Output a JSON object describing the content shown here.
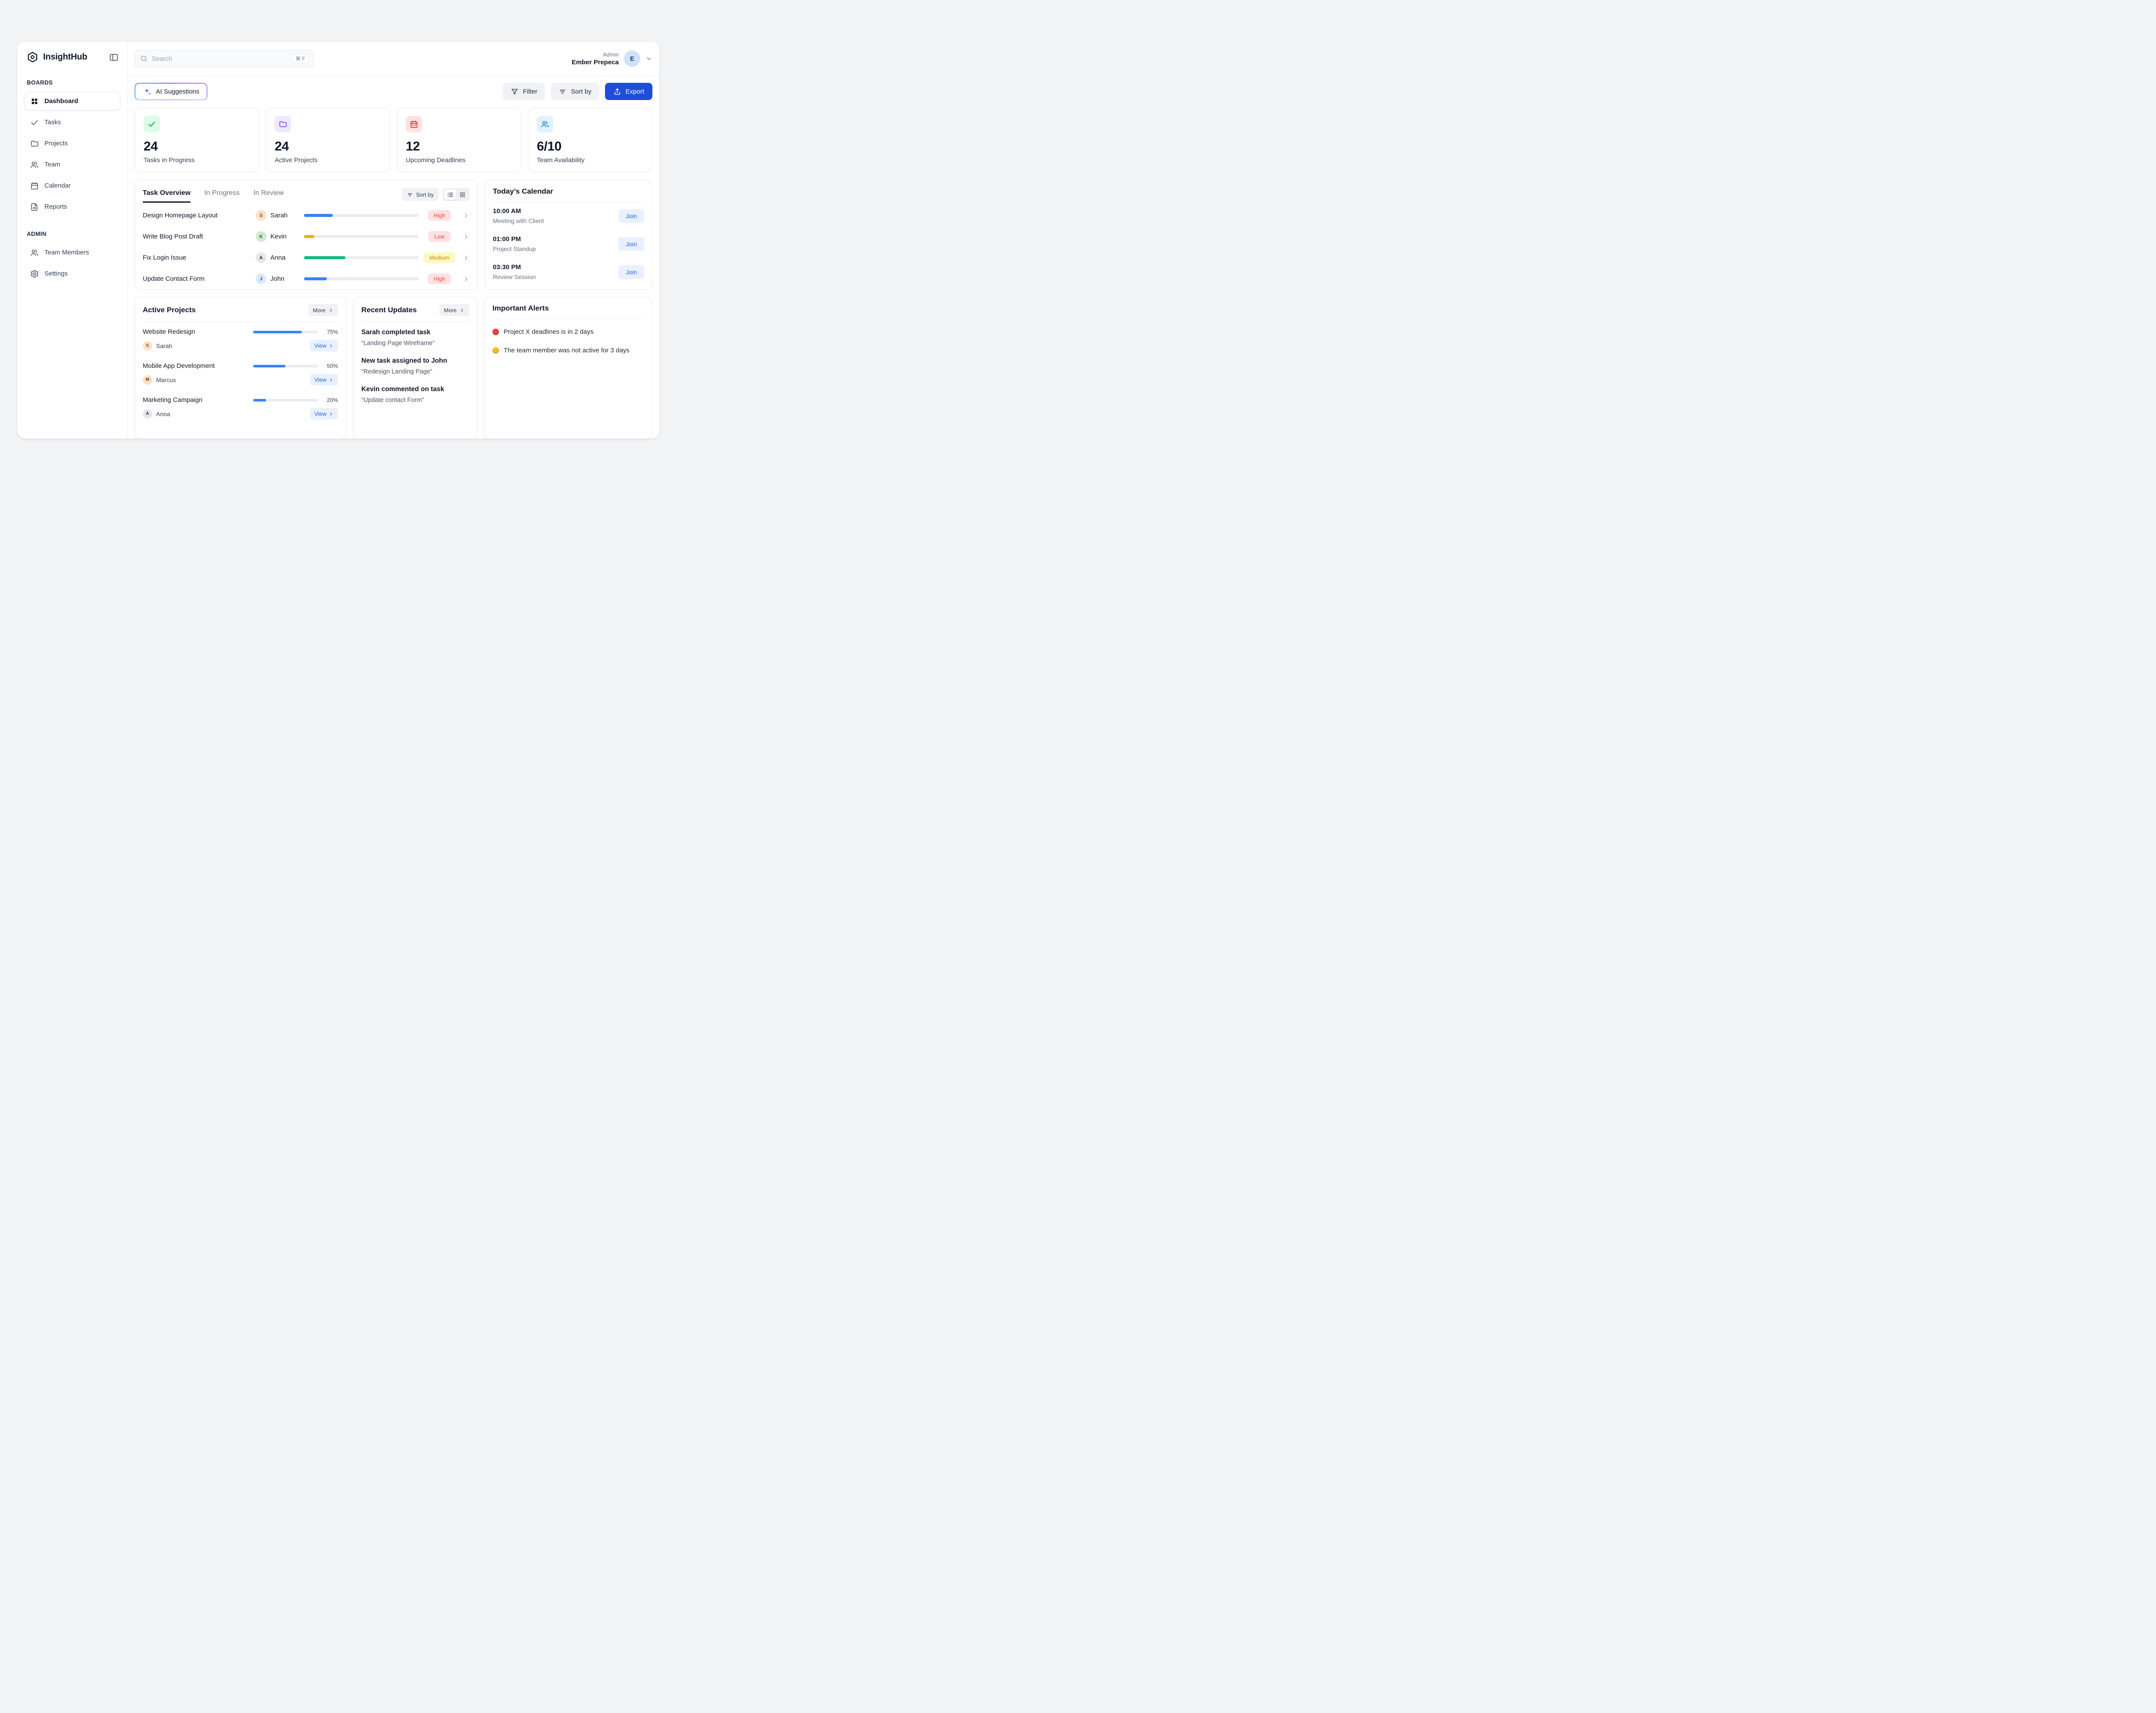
{
  "app": {
    "name": "InsightHub"
  },
  "header": {
    "search_placeholder": "Search",
    "search_shortcut": "⌘ F",
    "user_role": "Admin",
    "user_name": "Ember Prepeca"
  },
  "sidebar": {
    "sections": [
      {
        "label": "BOARDS",
        "items": [
          {
            "label": "Dashboard"
          },
          {
            "label": "Tasks"
          },
          {
            "label": "Projects"
          },
          {
            "label": "Team"
          },
          {
            "label": "Calendar"
          },
          {
            "label": "Reports"
          }
        ]
      },
      {
        "label": "ADMIN",
        "items": [
          {
            "label": "Team Members"
          },
          {
            "label": "Settings"
          }
        ]
      }
    ]
  },
  "toolbar": {
    "ai_suggestions_label": "AI Suggestions",
    "filter_label": "Filter",
    "sort_label": "Sort by",
    "export_label": "Export"
  },
  "stats": [
    {
      "value": "24",
      "label": "Tasks in Progress"
    },
    {
      "value": "24",
      "label": "Active Projects"
    },
    {
      "value": "12",
      "label": "Upcoming Deadlines"
    },
    {
      "value": "6/10",
      "label": "Team Availability"
    }
  ],
  "task_overview": {
    "tabs": [
      {
        "label": "Task Overview"
      },
      {
        "label": "In Progress"
      },
      {
        "label": "In Review"
      }
    ],
    "sort_label": "Sort by",
    "rows": [
      {
        "task": "Design Homepage Layout",
        "assignee": "Sarah",
        "progress": 25,
        "bar_color": "#3b82f6",
        "priority": "High",
        "priority_variant": "high"
      },
      {
        "task": "Write Blog Post Draft",
        "assignee": "Kevin",
        "progress": 9,
        "bar_color": "#eab308",
        "priority": "Low",
        "priority_variant": "low"
      },
      {
        "task": "Fix Login Issue",
        "assignee": "Anna",
        "progress": 36,
        "bar_color": "#10b981",
        "priority": "Medium",
        "priority_variant": "medium"
      },
      {
        "task": "Update Contact Form",
        "assignee": "John",
        "progress": 20,
        "bar_color": "#3b82f6",
        "priority": "High",
        "priority_variant": "high"
      }
    ]
  },
  "calendar": {
    "title": "Today’s Calendar",
    "events": [
      {
        "time": "10:00 AM",
        "title": "Meeting with Client",
        "action": "Join"
      },
      {
        "time": "01:00 PM",
        "title": "Project Standup",
        "action": "Join"
      },
      {
        "time": "03:30 PM",
        "title": "Review Session",
        "action": "Join"
      }
    ]
  },
  "active_projects": {
    "title": "Active Projects",
    "more_label": "More",
    "items": [
      {
        "name": "Website Redesign",
        "owner": "Sarah",
        "progress": "75%",
        "bar_color": "#3b82f6",
        "view_label": "View"
      },
      {
        "name": "Mobile App Development",
        "owner": "Marcus",
        "progress": "50%",
        "bar_color": "#3b82f6",
        "view_label": "View"
      },
      {
        "name": "Marketing Campaign",
        "owner": "Anna",
        "progress": "20%",
        "bar_color": "#3b82f6",
        "view_label": "View"
      }
    ]
  },
  "recent_updates": {
    "title": "Recent Updates",
    "more_label": "More",
    "items": [
      {
        "title": "Sarah completed task",
        "subtitle": "“Landing Page Wireframe”"
      },
      {
        "title": "New task assigned to John",
        "subtitle": "“Redesign Landing Page”"
      },
      {
        "title": "Kevin commented on task",
        "subtitle": "“Update contact Form”"
      }
    ]
  },
  "alerts": {
    "title": "Important Alerts",
    "items": [
      {
        "color": "#ef4444",
        "text": "Project X deadlines is in 2 days"
      },
      {
        "color": "#fbbf24",
        "text": "The team member was not active for 3 days"
      }
    ]
  },
  "icons": [
    "hexagon-logo",
    "panel-toggle",
    "search",
    "chevron-down",
    "sparkle",
    "filter-funnel",
    "sort-lines",
    "export-arrow",
    "dashboard-grid",
    "check",
    "folder",
    "users",
    "calendar",
    "file-text",
    "gear",
    "list-view",
    "grid-view",
    "chevron-right"
  ]
}
